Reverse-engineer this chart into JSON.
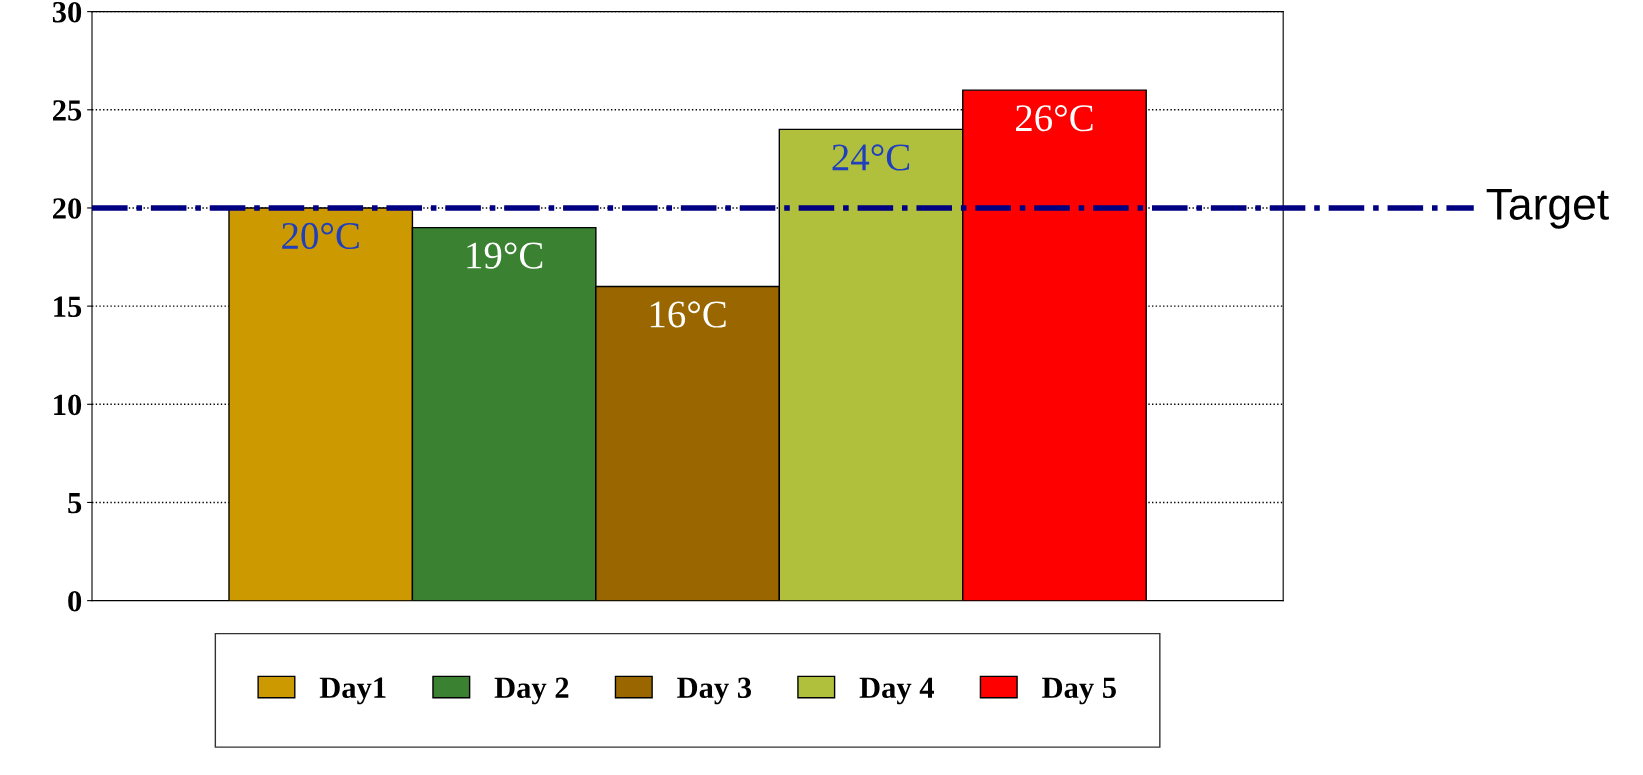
{
  "chart_data": {
    "type": "bar",
    "categories": [
      null
    ],
    "series": [
      {
        "name": "Day1",
        "color": "#cc9900",
        "values": [
          20
        ],
        "value_labels": [
          "20°C"
        ]
      },
      {
        "name": "Day 2",
        "color": "#3a8231",
        "values": [
          19
        ],
        "value_labels": [
          "19°C"
        ]
      },
      {
        "name": "Day 3",
        "color": "#996600",
        "values": [
          16
        ],
        "value_labels": [
          "16°C"
        ]
      },
      {
        "name": "Day 4",
        "color": "#b0bf3c",
        "values": [
          24
        ],
        "value_labels": [
          "24°C"
        ]
      },
      {
        "name": "Day 5",
        "color": "#ff0000",
        "values": [
          26
        ],
        "value_labels": [
          "26°C"
        ]
      }
    ],
    "ylim": [
      0,
      30
    ],
    "yticks": [
      0,
      5,
      10,
      15,
      20,
      25,
      30
    ],
    "grid": "y",
    "legend": "bottom",
    "tick_labels": "y",
    "ref_lines": [
      {
        "axis": "y",
        "value": 20,
        "label": "Target",
        "color": "#000080",
        "line_style": "dashdot"
      }
    ]
  }
}
